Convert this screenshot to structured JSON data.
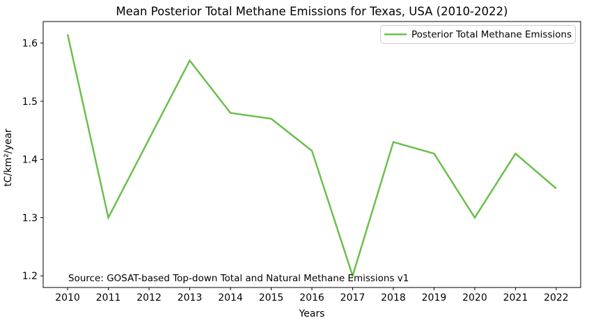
{
  "chart_data": {
    "type": "line",
    "title": "Mean Posterior Total Methane Emissions for Texas, USA (2010-2022)",
    "xlabel": "Years",
    "ylabel": "tC/km²/year",
    "x": [
      2010,
      2011,
      2012,
      2013,
      2014,
      2015,
      2016,
      2017,
      2018,
      2019,
      2020,
      2021,
      2022
    ],
    "series": [
      {
        "name": "Posterior Total Methane Emissions",
        "color": "#6abf4b",
        "line_width": 2.5,
        "values": [
          1.615,
          1.3,
          1.435,
          1.57,
          1.48,
          1.47,
          1.415,
          1.2,
          1.43,
          1.41,
          1.3,
          1.41,
          1.35
        ]
      }
    ],
    "xticks": [
      2010,
      2011,
      2012,
      2013,
      2014,
      2015,
      2016,
      2017,
      2018,
      2019,
      2020,
      2021,
      2022
    ],
    "yticks": [
      1.2,
      1.3,
      1.4,
      1.5,
      1.6
    ],
    "xlim": [
      2009.4,
      2022.6
    ],
    "ylim": [
      1.18,
      1.637
    ],
    "grid": false,
    "legend_position": "upper right",
    "frame_color": "#000000",
    "annotations": [
      {
        "text": "Source: GOSAT-based Top-down Total and Natural Methane Emissions v1",
        "color": "#2222dd"
      }
    ]
  }
}
